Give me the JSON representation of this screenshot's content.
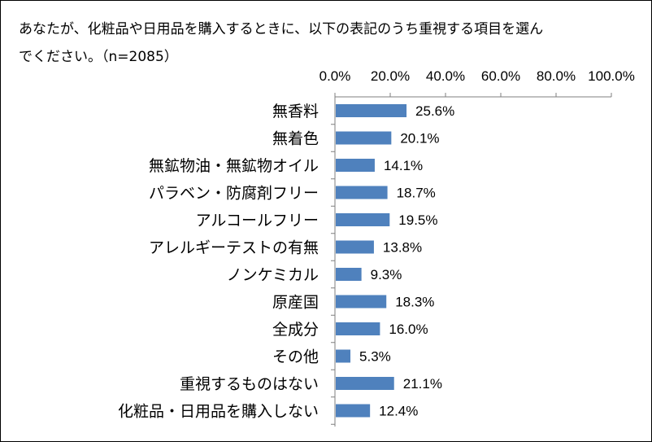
{
  "question": {
    "line1": "あなたが、化粧品や日用品を購入するときに、以下の表記のうち重視する項目を選ん",
    "line2": "でください。（n=2085）"
  },
  "colors": {
    "bar": "#4f81bd",
    "axis": "#7f7f7f",
    "text": "#000000"
  },
  "chart_data": {
    "type": "bar",
    "orientation": "horizontal",
    "title": "",
    "xlabel": "",
    "ylabel": "",
    "xlim": [
      0,
      100
    ],
    "x_ticks": [
      "0.0%",
      "20.0%",
      "40.0%",
      "60.0%",
      "80.0%",
      "100.0%"
    ],
    "tick_axis_position": "top",
    "grid": false,
    "legend": "none",
    "unit": "%",
    "categories": [
      "無香料",
      "無着色",
      "無鉱物油・無鉱物オイル",
      "パラベン・防腐剤フリー",
      "アルコールフリー",
      "アレルギーテストの有無",
      "ノンケミカル",
      "原産国",
      "全成分",
      "その他",
      "重視するものはない",
      "化粧品・日用品を購入しない"
    ],
    "values": [
      25.6,
      20.1,
      14.1,
      18.7,
      19.5,
      13.8,
      9.3,
      18.3,
      16.0,
      5.3,
      21.1,
      12.4
    ],
    "value_labels": [
      "25.6%",
      "20.1%",
      "14.1%",
      "18.7%",
      "19.5%",
      "13.8%",
      "9.3%",
      "18.3%",
      "16.0%",
      "5.3%",
      "21.1%",
      "12.4%"
    ]
  }
}
